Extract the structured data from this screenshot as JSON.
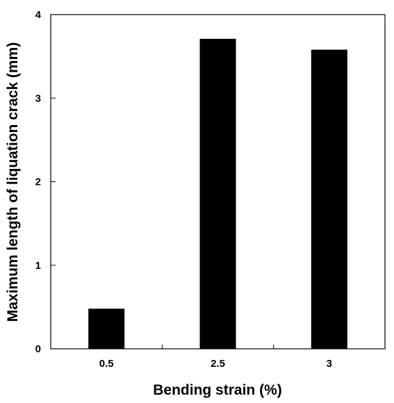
{
  "chart_data": {
    "type": "bar",
    "categories": [
      "0.5",
      "2.5",
      "3"
    ],
    "values": [
      0.48,
      3.71,
      3.58
    ],
    "title": "",
    "xlabel": "Bending strain (%)",
    "ylabel": "Maximum length of liquation crack (mm)",
    "ylim": [
      0,
      4
    ],
    "yticks": [
      0,
      1,
      2,
      3,
      4
    ],
    "grid": false,
    "bar_color": "#000000"
  }
}
